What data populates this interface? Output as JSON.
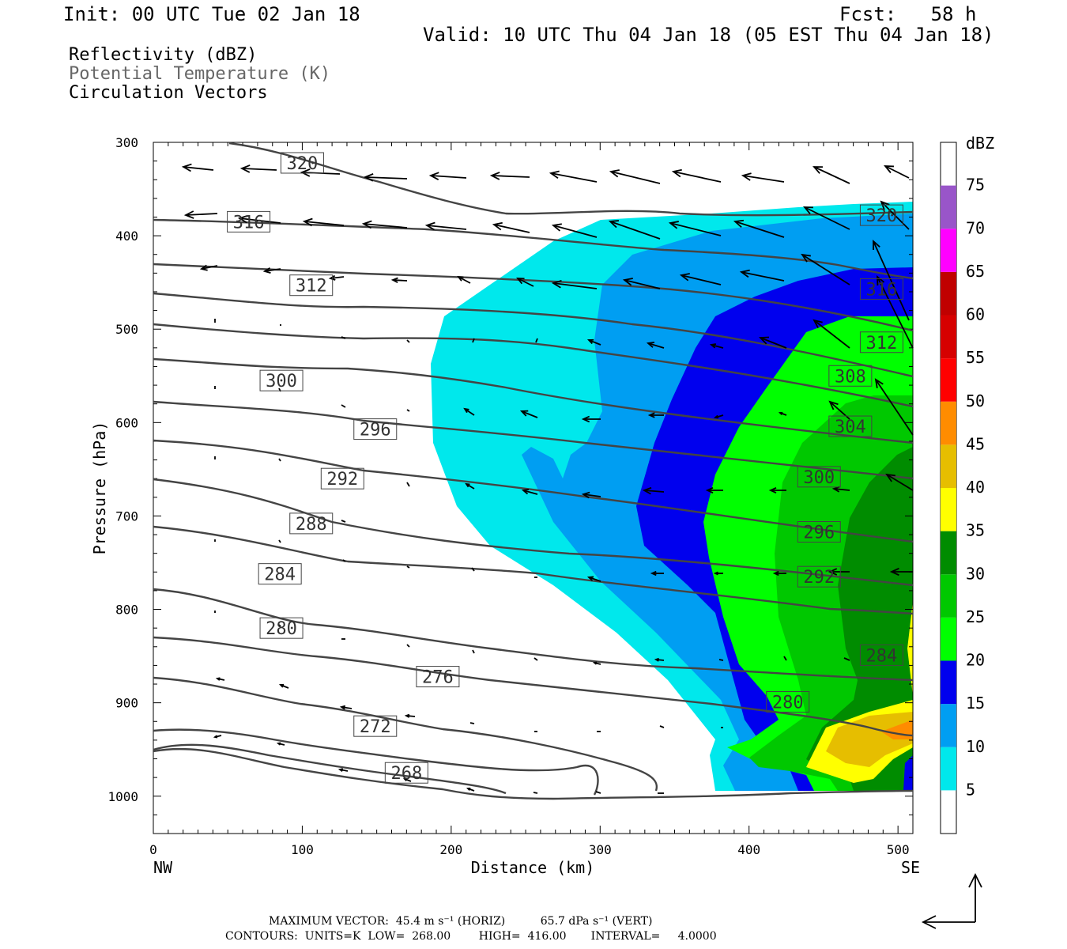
{
  "header": {
    "init": "Init: 00 UTC Tue 02 Jan 18",
    "fcst": "Fcst:   58 h",
    "valid": "Valid: 10 UTC Thu 04 Jan 18 (05 EST Thu 04 Jan 18)"
  },
  "fields": [
    "Reflectivity (dBZ)",
    "Potential Temperature (K)",
    "Circulation Vectors"
  ],
  "footer": {
    "max_vector": "MAXIMUM VECTOR:  45.4 m s⁻¹ (HORIZ)          65.7 dPa s⁻¹ (VERT)",
    "contours": "CONTOURS:  UNITS=K  LOW=  268.00        HIGH=  416.00       INTERVAL=     4.0000"
  },
  "chart_data": {
    "type": "contour-cross-section",
    "ylabel": "Pressure (hPa)",
    "xlabel": "Distance (km)",
    "x_ticks": [
      0,
      100,
      200,
      300,
      400,
      500
    ],
    "y_ticks": [
      300,
      400,
      500,
      600,
      700,
      800,
      900,
      1000
    ],
    "xlim": [
      0,
      510
    ],
    "ylim": [
      300,
      1040
    ],
    "x_end_labels": {
      "left": "NW",
      "right": "SE"
    },
    "colorbar": {
      "title": "dBZ",
      "levels": [
        5,
        10,
        15,
        20,
        25,
        30,
        35,
        40,
        45,
        50,
        55,
        60,
        65,
        70,
        75
      ],
      "colors": [
        "#00e8ec",
        "#009ef2",
        "#0000ee",
        "#00ff00",
        "#00c800",
        "#008c00",
        "#ffff00",
        "#e6be00",
        "#ff8c00",
        "#ff0000",
        "#d60000",
        "#c00000",
        "#ff00ff",
        "#9955c9",
        "#ffffff"
      ]
    },
    "theta_contour_labels": [
      {
        "value": "320",
        "x": 100,
        "p": 322
      },
      {
        "value": "316",
        "x": 64,
        "p": 385
      },
      {
        "value": "312",
        "x": 106,
        "p": 453
      },
      {
        "value": "300",
        "x": 86,
        "p": 555
      },
      {
        "value": "296",
        "x": 149,
        "p": 607
      },
      {
        "value": "292",
        "x": 127,
        "p": 660
      },
      {
        "value": "288",
        "x": 106,
        "p": 708
      },
      {
        "value": "284",
        "x": 85,
        "p": 762
      },
      {
        "value": "280",
        "x": 86,
        "p": 820
      },
      {
        "value": "276",
        "x": 191,
        "p": 872
      },
      {
        "value": "272",
        "x": 149,
        "p": 925
      },
      {
        "value": "268",
        "x": 170,
        "p": 975
      },
      {
        "value": "320",
        "x": 489,
        "p": 378
      },
      {
        "value": "316",
        "x": 489,
        "p": 457
      },
      {
        "value": "312",
        "x": 489,
        "p": 514
      },
      {
        "value": "308",
        "x": 468,
        "p": 550
      },
      {
        "value": "304",
        "x": 468,
        "p": 604
      },
      {
        "value": "300",
        "x": 447,
        "p": 658
      },
      {
        "value": "296",
        "x": 447,
        "p": 717
      },
      {
        "value": "292",
        "x": 447,
        "p": 765
      },
      {
        "value": "284",
        "x": 489,
        "p": 849
      },
      {
        "value": "280",
        "x": 426,
        "p": 899
      }
    ]
  }
}
